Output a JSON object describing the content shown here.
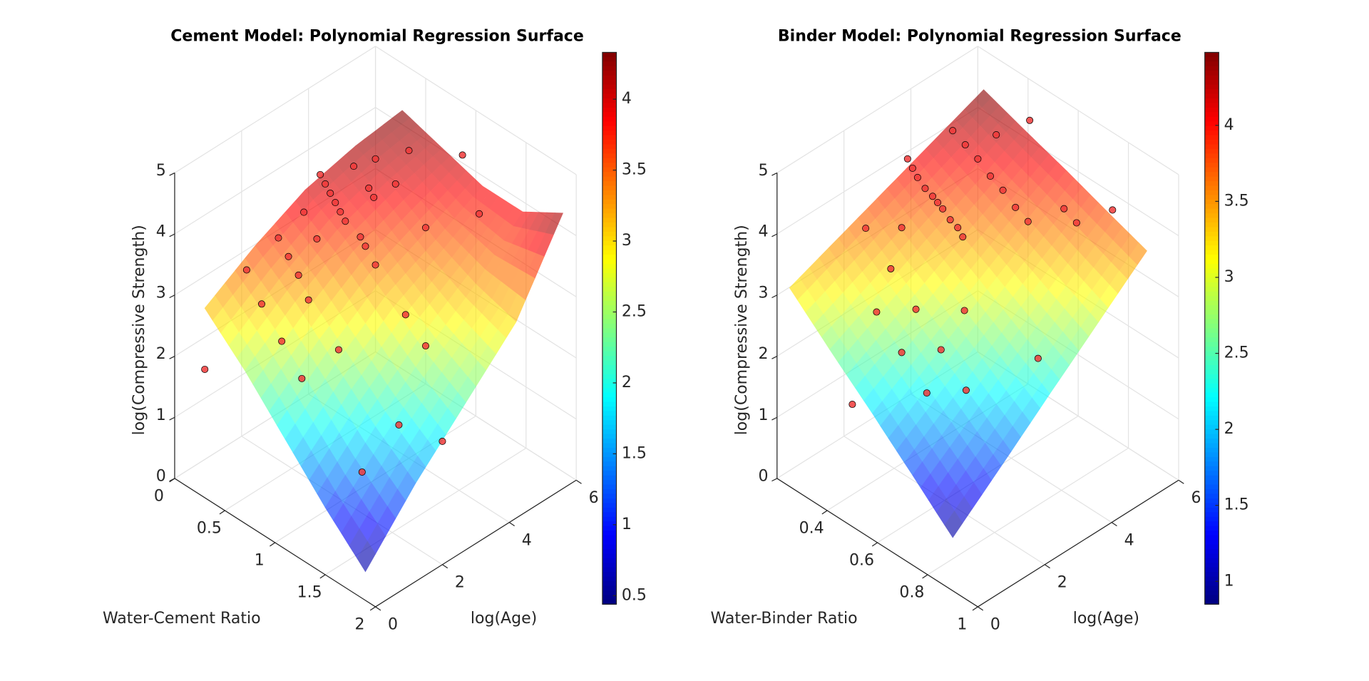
{
  "chart_data": [
    {
      "type": "surface3d",
      "title": "Cement Model: Polynomial Regression Surface",
      "xlabel": "Water-Cement Ratio",
      "ylabel": "log(Age)",
      "zlabel": "log(Compressive Strength)",
      "xlim": [
        0,
        2
      ],
      "ylim": [
        0,
        6
      ],
      "zlim": [
        0,
        5
      ],
      "xticks": [
        0,
        0.5,
        1,
        1.5,
        2
      ],
      "yticks": [
        0,
        2,
        4,
        6
      ],
      "zticks": [
        0,
        1,
        2,
        3,
        4,
        5
      ],
      "grid": true,
      "colormap": "jet",
      "surface": {
        "x": [
          0.3,
          0.7,
          1.1,
          1.5,
          1.9
        ],
        "y": [
          0,
          1.5,
          3,
          4.5,
          5.9
        ],
        "z": [
          [
            3.1,
            2.5,
            1.8,
            1.1,
            0.47
          ],
          [
            3.6,
            3.1,
            2.5,
            1.9,
            1.4
          ],
          [
            4.0,
            3.6,
            3.1,
            2.6,
            2.2
          ],
          [
            4.2,
            3.9,
            3.5,
            3.2,
            3.0
          ],
          [
            4.3,
            4.1,
            3.9,
            3.9,
            4.3
          ]
        ]
      },
      "scatter": {
        "color": "#f03a3a",
        "x": [
          0.35,
          0.4,
          0.45,
          0.5,
          0.55,
          0.6,
          0.45,
          0.5,
          0.6,
          0.7,
          0.8,
          0.9,
          0.4,
          0.5,
          0.6,
          0.7,
          0.35,
          0.5,
          0.7,
          0.9,
          1.0,
          1.2,
          1.4,
          1.0,
          1.3,
          0.6,
          0.9,
          1.5,
          1.6,
          1.8,
          0.3,
          0.42,
          0.55,
          0.65,
          0.75
        ],
        "y": [
          3.3,
          3.3,
          3.3,
          3.3,
          3.3,
          3.3,
          4.0,
          4.5,
          4.0,
          4.5,
          3.3,
          3.3,
          1.9,
          1.9,
          1.9,
          1.9,
          1.1,
          1.1,
          1.1,
          1.1,
          1.9,
          3.3,
          3.3,
          4.5,
          5.2,
          5.2,
          5.9,
          1.1,
          1.9,
          2.6,
          0.0,
          2.6,
          2.6,
          4.0,
          3.3
        ],
        "z": [
          4.2,
          4.1,
          4.0,
          3.9,
          3.8,
          3.7,
          4.2,
          4.2,
          4.0,
          4.0,
          3.5,
          3.3,
          3.7,
          3.5,
          3.3,
          3.0,
          3.4,
          3.0,
          2.6,
          2.2,
          2.5,
          2.8,
          2.5,
          3.6,
          3.9,
          4.2,
          4.2,
          1.3,
          1.9,
          1.6,
          2.1,
          3.9,
          3.6,
          3.9,
          3.6
        ]
      },
      "colorbar": {
        "clim": [
          0.44,
          4.33
        ],
        "ticks": [
          0.5,
          1,
          1.5,
          2,
          2.5,
          3,
          3.5,
          4
        ]
      }
    },
    {
      "type": "surface3d",
      "title": "Binder Model: Polynomial Regression Surface",
      "xlabel": "Water-Binder Ratio",
      "ylabel": "log(Age)",
      "zlabel": "log(Compressive Strength)",
      "xlim": [
        0.2,
        1
      ],
      "ylim": [
        0,
        6
      ],
      "zlim": [
        0,
        5
      ],
      "xticks": [
        0.4,
        0.6,
        0.8,
        1
      ],
      "yticks": [
        0,
        2,
        4,
        6
      ],
      "zticks": [
        0,
        1,
        2,
        3,
        4,
        5
      ],
      "grid": true,
      "colormap": "jet",
      "surface": {
        "x": [
          0.25,
          0.41,
          0.58,
          0.74,
          0.9
        ],
        "y": [
          0,
          1.45,
          2.9,
          4.35,
          5.8
        ],
        "z": [
          [
            3.25,
            2.66,
            2.06,
            1.47,
            0.87
          ],
          [
            3.56,
            3.06,
            2.55,
            2.05,
            1.54
          ],
          [
            3.87,
            3.46,
            3.05,
            2.63,
            2.22
          ],
          [
            4.18,
            3.86,
            3.54,
            3.21,
            2.89
          ],
          [
            4.49,
            4.26,
            4.03,
            3.79,
            3.56
          ]
        ]
      },
      "scatter": {
        "color": "#f03a3a",
        "x": [
          0.28,
          0.3,
          0.32,
          0.35,
          0.38,
          0.4,
          0.42,
          0.45,
          0.48,
          0.5,
          0.3,
          0.35,
          0.4,
          0.45,
          0.5,
          0.55,
          0.6,
          0.65,
          0.7,
          0.75,
          0.3,
          0.4,
          0.5,
          0.6,
          0.7,
          0.45,
          0.55,
          0.65,
          0.35,
          0.6,
          0.8,
          0.5,
          0.42,
          0.38
        ],
        "y": [
          3.3,
          3.3,
          3.3,
          3.3,
          3.3,
          3.3,
          3.3,
          3.3,
          3.3,
          3.3,
          4.5,
          4.5,
          4.5,
          4.5,
          4.5,
          4.5,
          4.5,
          5.2,
          5.2,
          5.9,
          1.9,
          1.9,
          1.9,
          1.9,
          1.9,
          1.1,
          1.1,
          1.1,
          2.6,
          2.6,
          3.3,
          0.0,
          5.9,
          5.2
        ],
        "z": [
          4.3,
          4.2,
          4.1,
          4.0,
          3.95,
          3.9,
          3.85,
          3.75,
          3.7,
          3.6,
          4.4,
          4.3,
          4.2,
          4.05,
          3.95,
          3.8,
          3.7,
          3.8,
          3.7,
          3.8,
          3.7,
          3.3,
          2.9,
          2.5,
          2.1,
          3.0,
          2.6,
          2.2,
          3.6,
          2.9,
          2.4,
          2.0,
          4.4,
          4.3
        ]
      },
      "colorbar": {
        "clim": [
          0.85,
          4.48
        ],
        "ticks": [
          1,
          1.5,
          2,
          2.5,
          3,
          3.5,
          4
        ]
      }
    }
  ]
}
